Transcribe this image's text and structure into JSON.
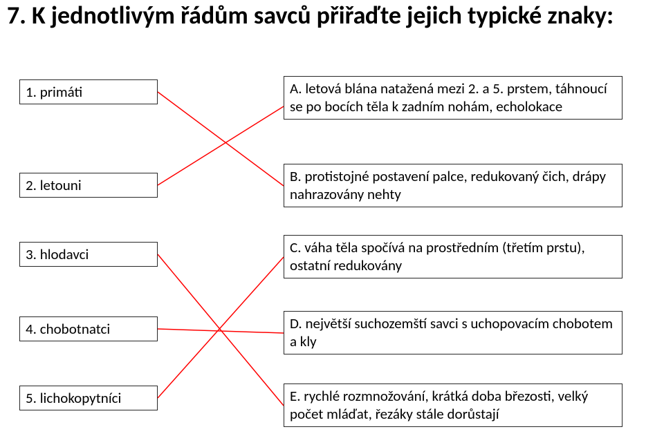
{
  "title": "7. K jednotlivým řádům savců přiřaďte jejich typické znaky:",
  "leftItems": [
    {
      "label": "1. primáti"
    },
    {
      "label": "2. letouni"
    },
    {
      "label": "3. hlodavci"
    },
    {
      "label": "4. chobotnatci"
    },
    {
      "label": "5. lichokopytníci"
    }
  ],
  "rightItems": [
    {
      "label": "A. letová blána natažená mezi 2. a 5. prstem, táhnoucí se po bocích těla k zadním nohám, echolokace"
    },
    {
      "label": "B. protistojné postavení palce, redukovaný čich, drápy nahrazovány nehty"
    },
    {
      "label": "C. váha těla spočívá na prostředním (třetím prstu), ostatní redukovány"
    },
    {
      "label": "D. největší suchozemští savci s uchopovacím chobotem a kly"
    },
    {
      "label": "E. rychlé rozmnožování, krátká doba březosti, velký počet mláďat, řezáky stále dorůstají"
    }
  ],
  "layout": {
    "leftX": 28,
    "rightX": 410,
    "leftW": 200,
    "rightW": 490,
    "leftBoxH": 36,
    "leftYs": [
      115,
      250,
      350,
      458,
      558
    ],
    "rightYs": [
      110,
      237,
      340,
      450,
      555
    ],
    "rightHs": [
      88,
      64,
      64,
      64,
      64
    ]
  },
  "connections": [
    {
      "from": 0,
      "to": 1
    },
    {
      "from": 1,
      "to": 0
    },
    {
      "from": 2,
      "to": 4
    },
    {
      "from": 3,
      "to": 3
    },
    {
      "from": 4,
      "to": 2
    }
  ],
  "style": {
    "lineColor": "#ff0000",
    "lineWidth": 1.5,
    "borderColor": "#262626",
    "background": "#ffffff",
    "titleFontSize": 36,
    "boxFontSize": 21
  }
}
